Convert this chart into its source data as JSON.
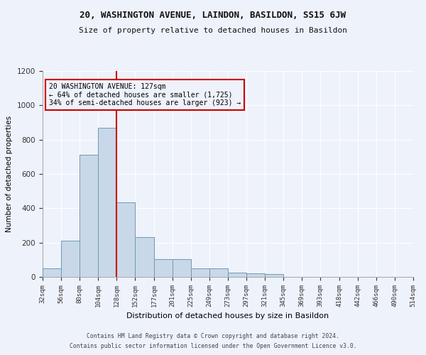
{
  "title1": "20, WASHINGTON AVENUE, LAINDON, BASILDON, SS15 6JW",
  "title2": "Size of property relative to detached houses in Basildon",
  "xlabel": "Distribution of detached houses by size in Basildon",
  "ylabel": "Number of detached properties",
  "annotation_line1": "20 WASHINGTON AVENUE: 127sqm",
  "annotation_line2": "← 64% of detached houses are smaller (1,725)",
  "annotation_line3": "34% of semi-detached houses are larger (923) →",
  "property_size": 127,
  "bin_edges": [
    32,
    56,
    80,
    104,
    128,
    152,
    177,
    201,
    225,
    249,
    273,
    297,
    321,
    345,
    369,
    393,
    418,
    442,
    466,
    490,
    514
  ],
  "bin_labels": [
    "32sqm",
    "56sqm",
    "80sqm",
    "104sqm",
    "128sqm",
    "152sqm",
    "177sqm",
    "201sqm",
    "225sqm",
    "249sqm",
    "273sqm",
    "297sqm",
    "321sqm",
    "345sqm",
    "369sqm",
    "393sqm",
    "418sqm",
    "442sqm",
    "466sqm",
    "490sqm",
    "514sqm"
  ],
  "bar_heights": [
    50,
    210,
    710,
    870,
    435,
    230,
    105,
    105,
    50,
    50,
    25,
    20,
    15,
    0,
    0,
    0,
    0,
    0,
    0,
    0
  ],
  "bar_color": "#c8d8e8",
  "bar_edge_color": "#7099b0",
  "vline_x": 128,
  "vline_color": "#cc0000",
  "box_color": "#cc0000",
  "ylim": [
    0,
    1200
  ],
  "yticks": [
    0,
    200,
    400,
    600,
    800,
    1000,
    1200
  ],
  "background_color": "#eef2fb",
  "grid_color": "#ffffff",
  "footer1": "Contains HM Land Registry data © Crown copyright and database right 2024.",
  "footer2": "Contains public sector information licensed under the Open Government Licence v3.0."
}
